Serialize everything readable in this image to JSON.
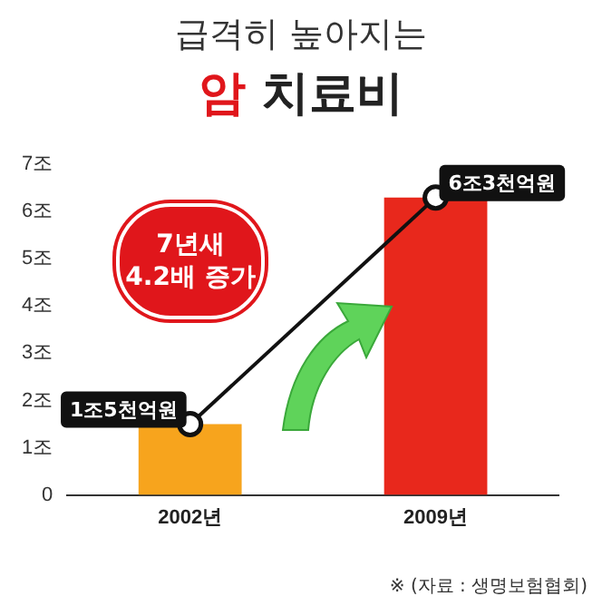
{
  "chart_data": {
    "type": "bar",
    "title": "급격히 높아지는",
    "subtitle": "암 치료비",
    "categories": [
      "2002년",
      "2009년"
    ],
    "series": [
      {
        "colors": [
          "#f7a41d",
          "#e8281c"
        ],
        "values": [
          1.5,
          6.3
        ]
      },
      {
        "type": "line",
        "color": "#111111",
        "values": [
          1.5,
          6.3
        ],
        "marker": "circle",
        "value_labels": [
          "1조5천억원",
          "6조3천억원"
        ]
      }
    ],
    "ylim": [
      0,
      7
    ],
    "yticks": [
      0,
      {
        "value": 1,
        "label": "1조"
      },
      {
        "value": 2,
        "label": "2조"
      },
      {
        "value": 3,
        "label": "3조"
      },
      {
        "value": 4,
        "label": "4조"
      },
      {
        "value": 5,
        "label": "5조"
      },
      {
        "value": 6,
        "label": "6조"
      },
      {
        "value": 7,
        "label": "7조"
      }
    ],
    "grid": false,
    "legend": false,
    "annotations": [
      "7년새 4.2배 증가",
      "※ (자료 : 생명보험협회)"
    ]
  }
}
